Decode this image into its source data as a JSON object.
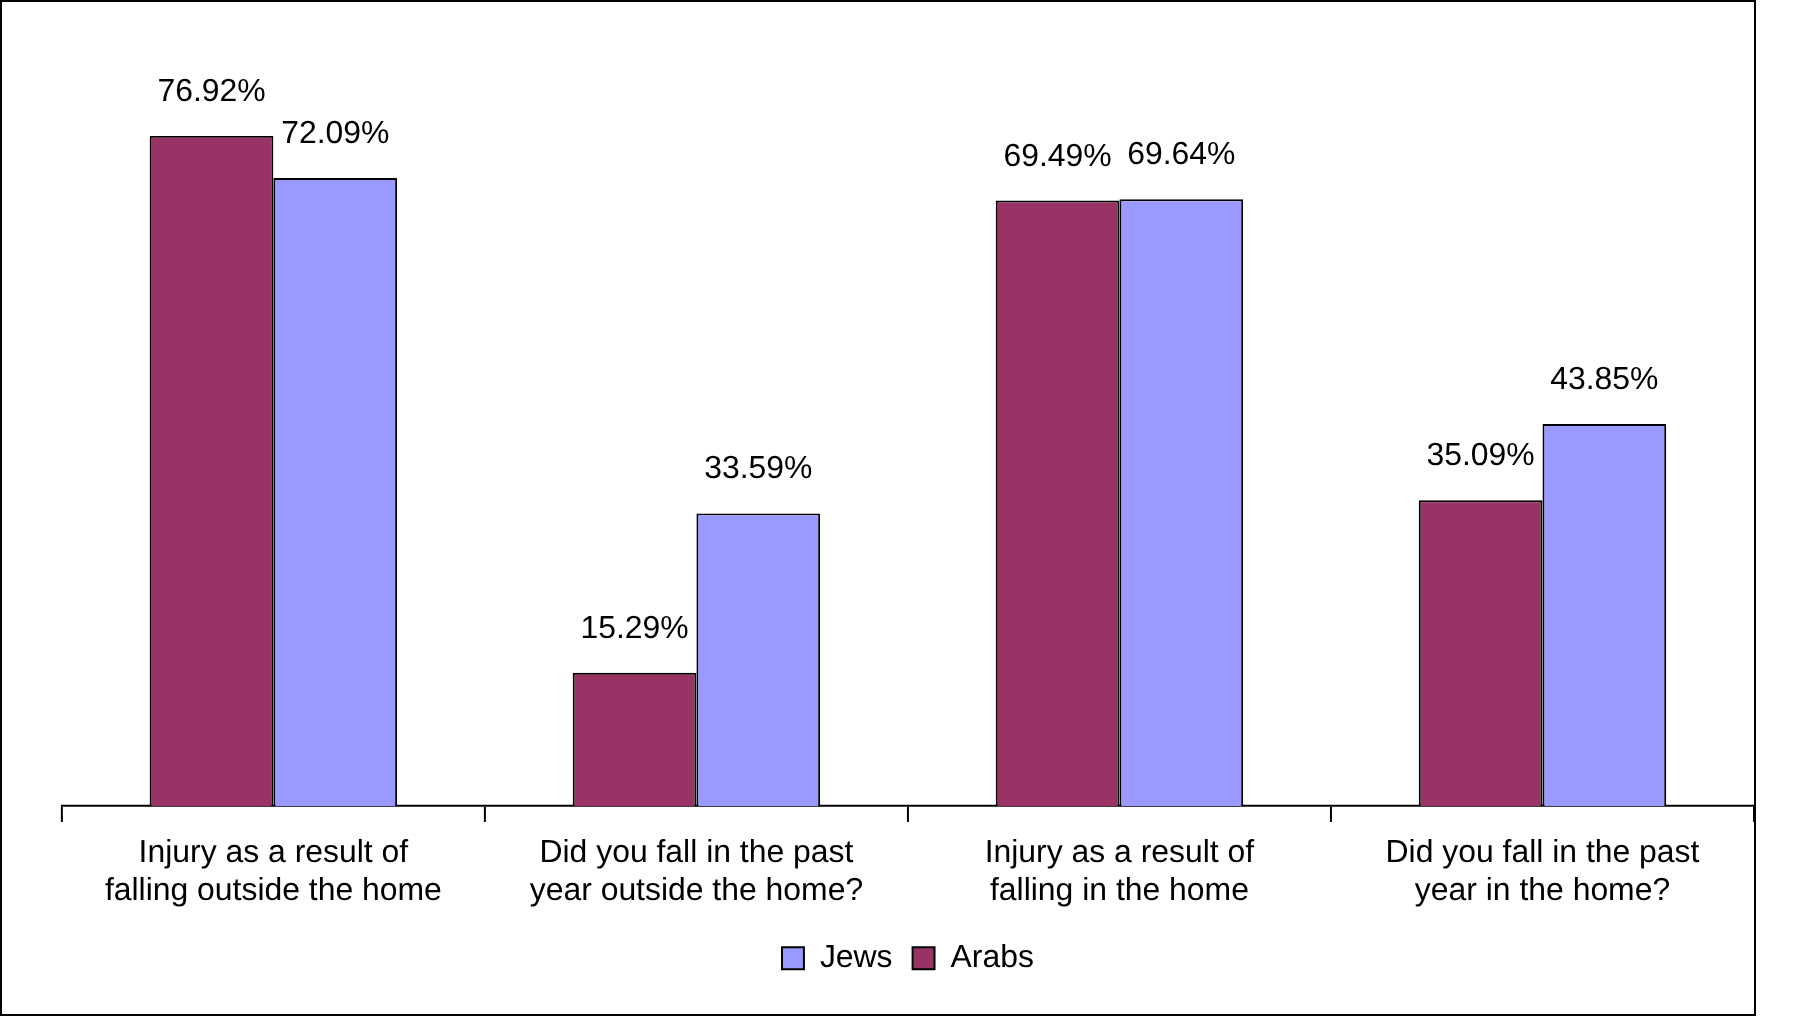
{
  "chart_data": {
    "type": "bar",
    "categories": [
      "Injury as a result of falling outside the home",
      "Did you fall in the past year outside the home?",
      "Injury as a result of falling in the home",
      "Did you fall in the past year in the home?"
    ],
    "series": [
      {
        "name": "Arabs",
        "color": "#993366",
        "values": [
          76.92,
          15.29,
          69.49,
          35.09
        ],
        "value_labels": [
          "76.92%",
          "15.29%",
          "69.49%",
          "35.09%"
        ]
      },
      {
        "name": "Jews",
        "color": "#9999ff",
        "values": [
          72.09,
          33.59,
          69.64,
          43.85
        ],
        "value_labels": [
          "72.09%",
          "33.59%",
          "69.64%",
          "43.85%"
        ]
      }
    ],
    "grid": false,
    "legend": "bottom"
  }
}
